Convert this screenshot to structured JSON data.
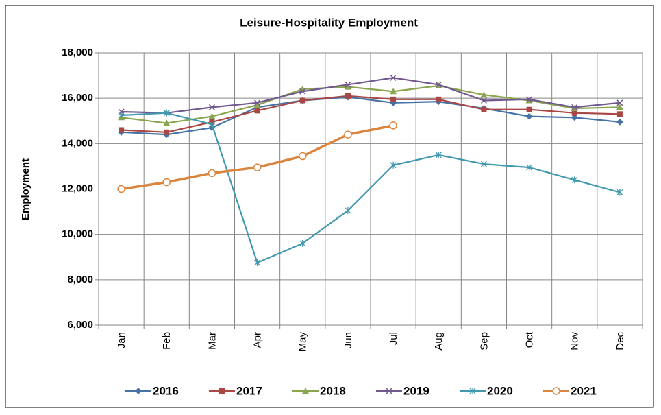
{
  "chart_data": {
    "type": "line",
    "title": "Leisure-Hospitality Employment",
    "y_label": "Employment",
    "categories": [
      "Jan",
      "Feb",
      "Mar",
      "Apr",
      "May",
      "Jun",
      "Jul",
      "Aug",
      "Sep",
      "Oct",
      "Nov",
      "Dec"
    ],
    "ylim": [
      6000,
      18000
    ],
    "yticks": [
      {
        "value": 6000,
        "label": "6,000"
      },
      {
        "value": 8000,
        "label": "8,000"
      },
      {
        "value": 10000,
        "label": "10,000"
      },
      {
        "value": 12000,
        "label": "12,000"
      },
      {
        "value": 14000,
        "label": "14,000"
      },
      {
        "value": 16000,
        "label": "16,000"
      },
      {
        "value": 18000,
        "label": "18,000"
      }
    ],
    "grid": true,
    "legend": "bottom",
    "series": [
      {
        "name": "2016",
        "color": "#4572a7",
        "marker": "diamond",
        "values": [
          14500,
          14400,
          14700,
          15600,
          15900,
          16050,
          15800,
          15850,
          15550,
          15200,
          15150,
          14950
        ]
      },
      {
        "name": "2017",
        "color": "#aa4643",
        "marker": "square",
        "values": [
          14600,
          14500,
          14950,
          15450,
          15900,
          16100,
          15950,
          15950,
          15500,
          15500,
          15350,
          15300
        ]
      },
      {
        "name": "2018",
        "color": "#89a54e",
        "marker": "triangle",
        "values": [
          15150,
          14900,
          15200,
          15700,
          16400,
          16500,
          16300,
          16550,
          16150,
          15900,
          15550,
          15600
        ]
      },
      {
        "name": "2019",
        "color": "#71588f",
        "marker": "x",
        "values": [
          15400,
          15350,
          15600,
          15800,
          16300,
          16600,
          16900,
          16600,
          15900,
          15950,
          15600,
          15800
        ]
      },
      {
        "name": "2020",
        "color": "#4198af",
        "marker": "star",
        "values": [
          15250,
          15350,
          14850,
          8750,
          9600,
          11050,
          13050,
          13500,
          13100,
          12950,
          12400,
          11850
        ]
      },
      {
        "name": "2021",
        "color": "#db843d",
        "marker": "circle",
        "values": [
          12000,
          12300,
          12700,
          12950,
          13450,
          14400,
          14800,
          null,
          null,
          null,
          null,
          null
        ]
      }
    ]
  }
}
